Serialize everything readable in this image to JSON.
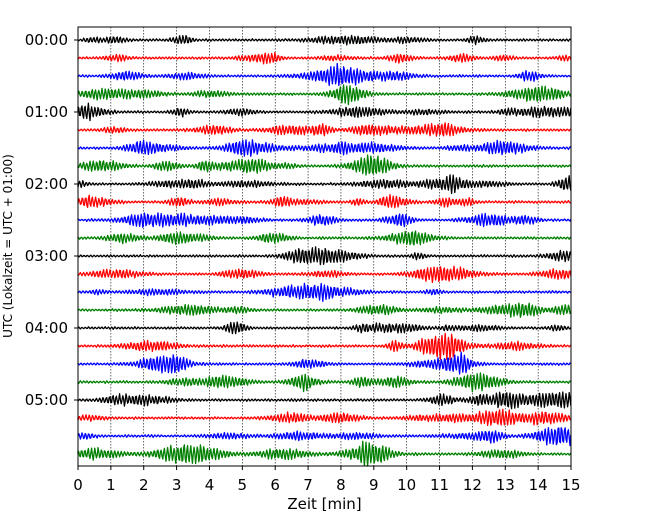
{
  "chart_data": {
    "type": "line",
    "title": "",
    "xlabel": "Zeit  [min]",
    "ylabel": "UTC (Lokalzeit = UTC + 01:00)",
    "xlim": [
      0,
      15
    ],
    "x_ticks": [
      "0",
      "1",
      "2",
      "3",
      "4",
      "5",
      "6",
      "7",
      "8",
      "9",
      "10",
      "11",
      "12",
      "13",
      "14",
      "15"
    ],
    "y_ticks": [
      "00:00",
      "01:00",
      "02:00",
      "03:00",
      "04:00",
      "05:00"
    ],
    "y_tick_rows": [
      0,
      4,
      8,
      12,
      16,
      20
    ],
    "row_count": 24,
    "row_interval_min": 15,
    "grid": {
      "vertical": true,
      "horizontal": false
    },
    "trace_colors": [
      "#000000",
      "#ff0000",
      "#0000ff",
      "#008000"
    ],
    "series": [
      {
        "row": 0,
        "start_utc": "00:00",
        "color": "#000000"
      },
      {
        "row": 1,
        "start_utc": "00:15",
        "color": "#ff0000"
      },
      {
        "row": 2,
        "start_utc": "00:30",
        "color": "#0000ff"
      },
      {
        "row": 3,
        "start_utc": "00:45",
        "color": "#008000"
      },
      {
        "row": 4,
        "start_utc": "01:00",
        "color": "#000000"
      },
      {
        "row": 5,
        "start_utc": "01:15",
        "color": "#ff0000"
      },
      {
        "row": 6,
        "start_utc": "01:30",
        "color": "#0000ff"
      },
      {
        "row": 7,
        "start_utc": "01:45",
        "color": "#008000"
      },
      {
        "row": 8,
        "start_utc": "02:00",
        "color": "#000000"
      },
      {
        "row": 9,
        "start_utc": "02:15",
        "color": "#ff0000"
      },
      {
        "row": 10,
        "start_utc": "02:30",
        "color": "#0000ff"
      },
      {
        "row": 11,
        "start_utc": "02:45",
        "color": "#008000"
      },
      {
        "row": 12,
        "start_utc": "03:00",
        "color": "#000000"
      },
      {
        "row": 13,
        "start_utc": "03:15",
        "color": "#ff0000"
      },
      {
        "row": 14,
        "start_utc": "03:30",
        "color": "#0000ff"
      },
      {
        "row": 15,
        "start_utc": "03:45",
        "color": "#008000"
      },
      {
        "row": 16,
        "start_utc": "04:00",
        "color": "#000000"
      },
      {
        "row": 17,
        "start_utc": "04:15",
        "color": "#ff0000"
      },
      {
        "row": 18,
        "start_utc": "04:30",
        "color": "#0000ff"
      },
      {
        "row": 19,
        "start_utc": "04:45",
        "color": "#008000"
      },
      {
        "row": 20,
        "start_utc": "05:00",
        "color": "#000000"
      },
      {
        "row": 21,
        "start_utc": "05:15",
        "color": "#ff0000"
      },
      {
        "row": 22,
        "start_utc": "05:30",
        "color": "#0000ff"
      },
      {
        "row": 23,
        "start_utc": "05:45",
        "color": "#008000"
      }
    ]
  }
}
